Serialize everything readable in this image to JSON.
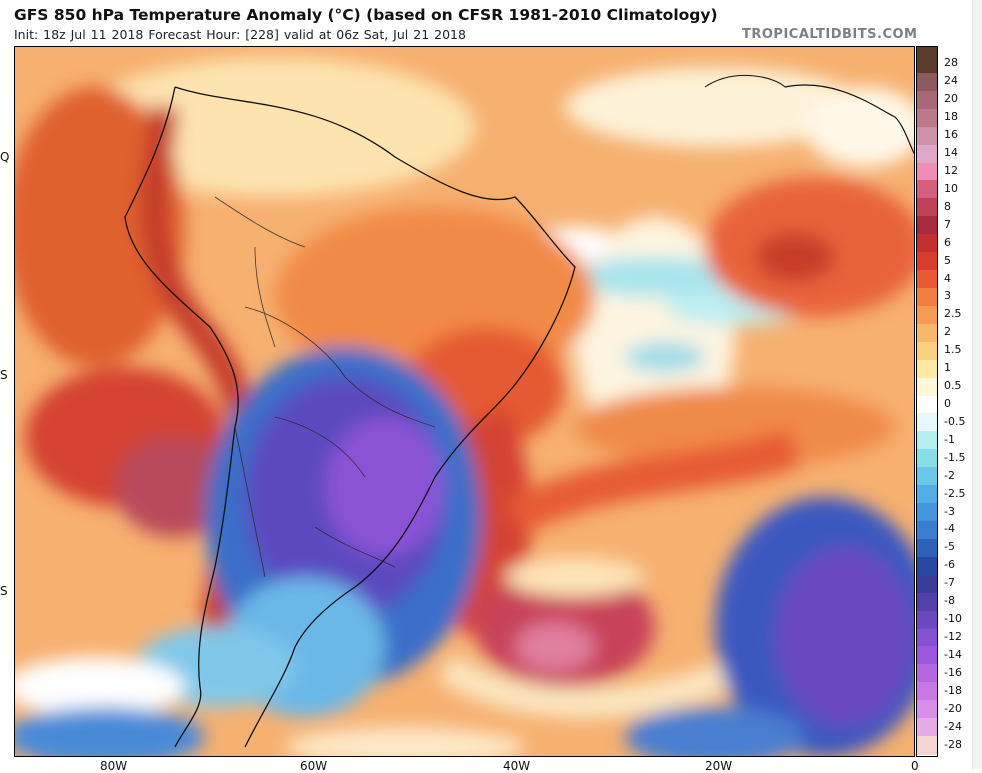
{
  "header": {
    "title": "GFS 850 hPa Temperature Anomaly (°C) (based on CFSR 1981-2010 Climatology)",
    "subtitle": "Init: 18z Jul 11 2018   Forecast Hour: [228]   valid at 06z Sat, Jul 21 2018",
    "source": "TROPICALTIDBITS.COM"
  },
  "map": {
    "lat_labels": [
      "Q",
      "S",
      "S"
    ],
    "lon_labels": [
      "80W",
      "60W",
      "40W",
      "20W",
      "0"
    ]
  },
  "legend": {
    "labels": [
      "28",
      "24",
      "20",
      "18",
      "16",
      "14",
      "12",
      "10",
      "8",
      "7",
      "6",
      "5",
      "4",
      "3",
      "2.5",
      "2",
      "1.5",
      "1",
      "0.5",
      "0",
      "-0.5",
      "-1",
      "-1.5",
      "-2",
      "-2.5",
      "-3",
      "-4",
      "-5",
      "-6",
      "-7",
      "-8",
      "-10",
      "-12",
      "-14",
      "-16",
      "-18",
      "-20",
      "-24",
      "-28"
    ],
    "colors": [
      "#5a3a2a",
      "#8a5a5e",
      "#a8687a",
      "#bb7a8c",
      "#cc90a8",
      "#e0a8c8",
      "#ee8cb8",
      "#d4607e",
      "#c04058",
      "#a82a3c",
      "#c23030",
      "#d83c2c",
      "#e85a34",
      "#f27e40",
      "#f59c52",
      "#f8b86a",
      "#fbd080",
      "#fde8a4",
      "#fef6d8",
      "#ffffff",
      "#e6f8fa",
      "#b6eef0",
      "#88dde8",
      "#6ac8e8",
      "#52aee4",
      "#4696dc",
      "#3a7ed0",
      "#2e62b8",
      "#2848a0",
      "#3a3c98",
      "#5240a8",
      "#6a48c0",
      "#8450d4",
      "#9c58dc",
      "#b468e0",
      "#c878e2",
      "#d890e6",
      "#e6ace8",
      "#f6d4d0"
    ]
  }
}
